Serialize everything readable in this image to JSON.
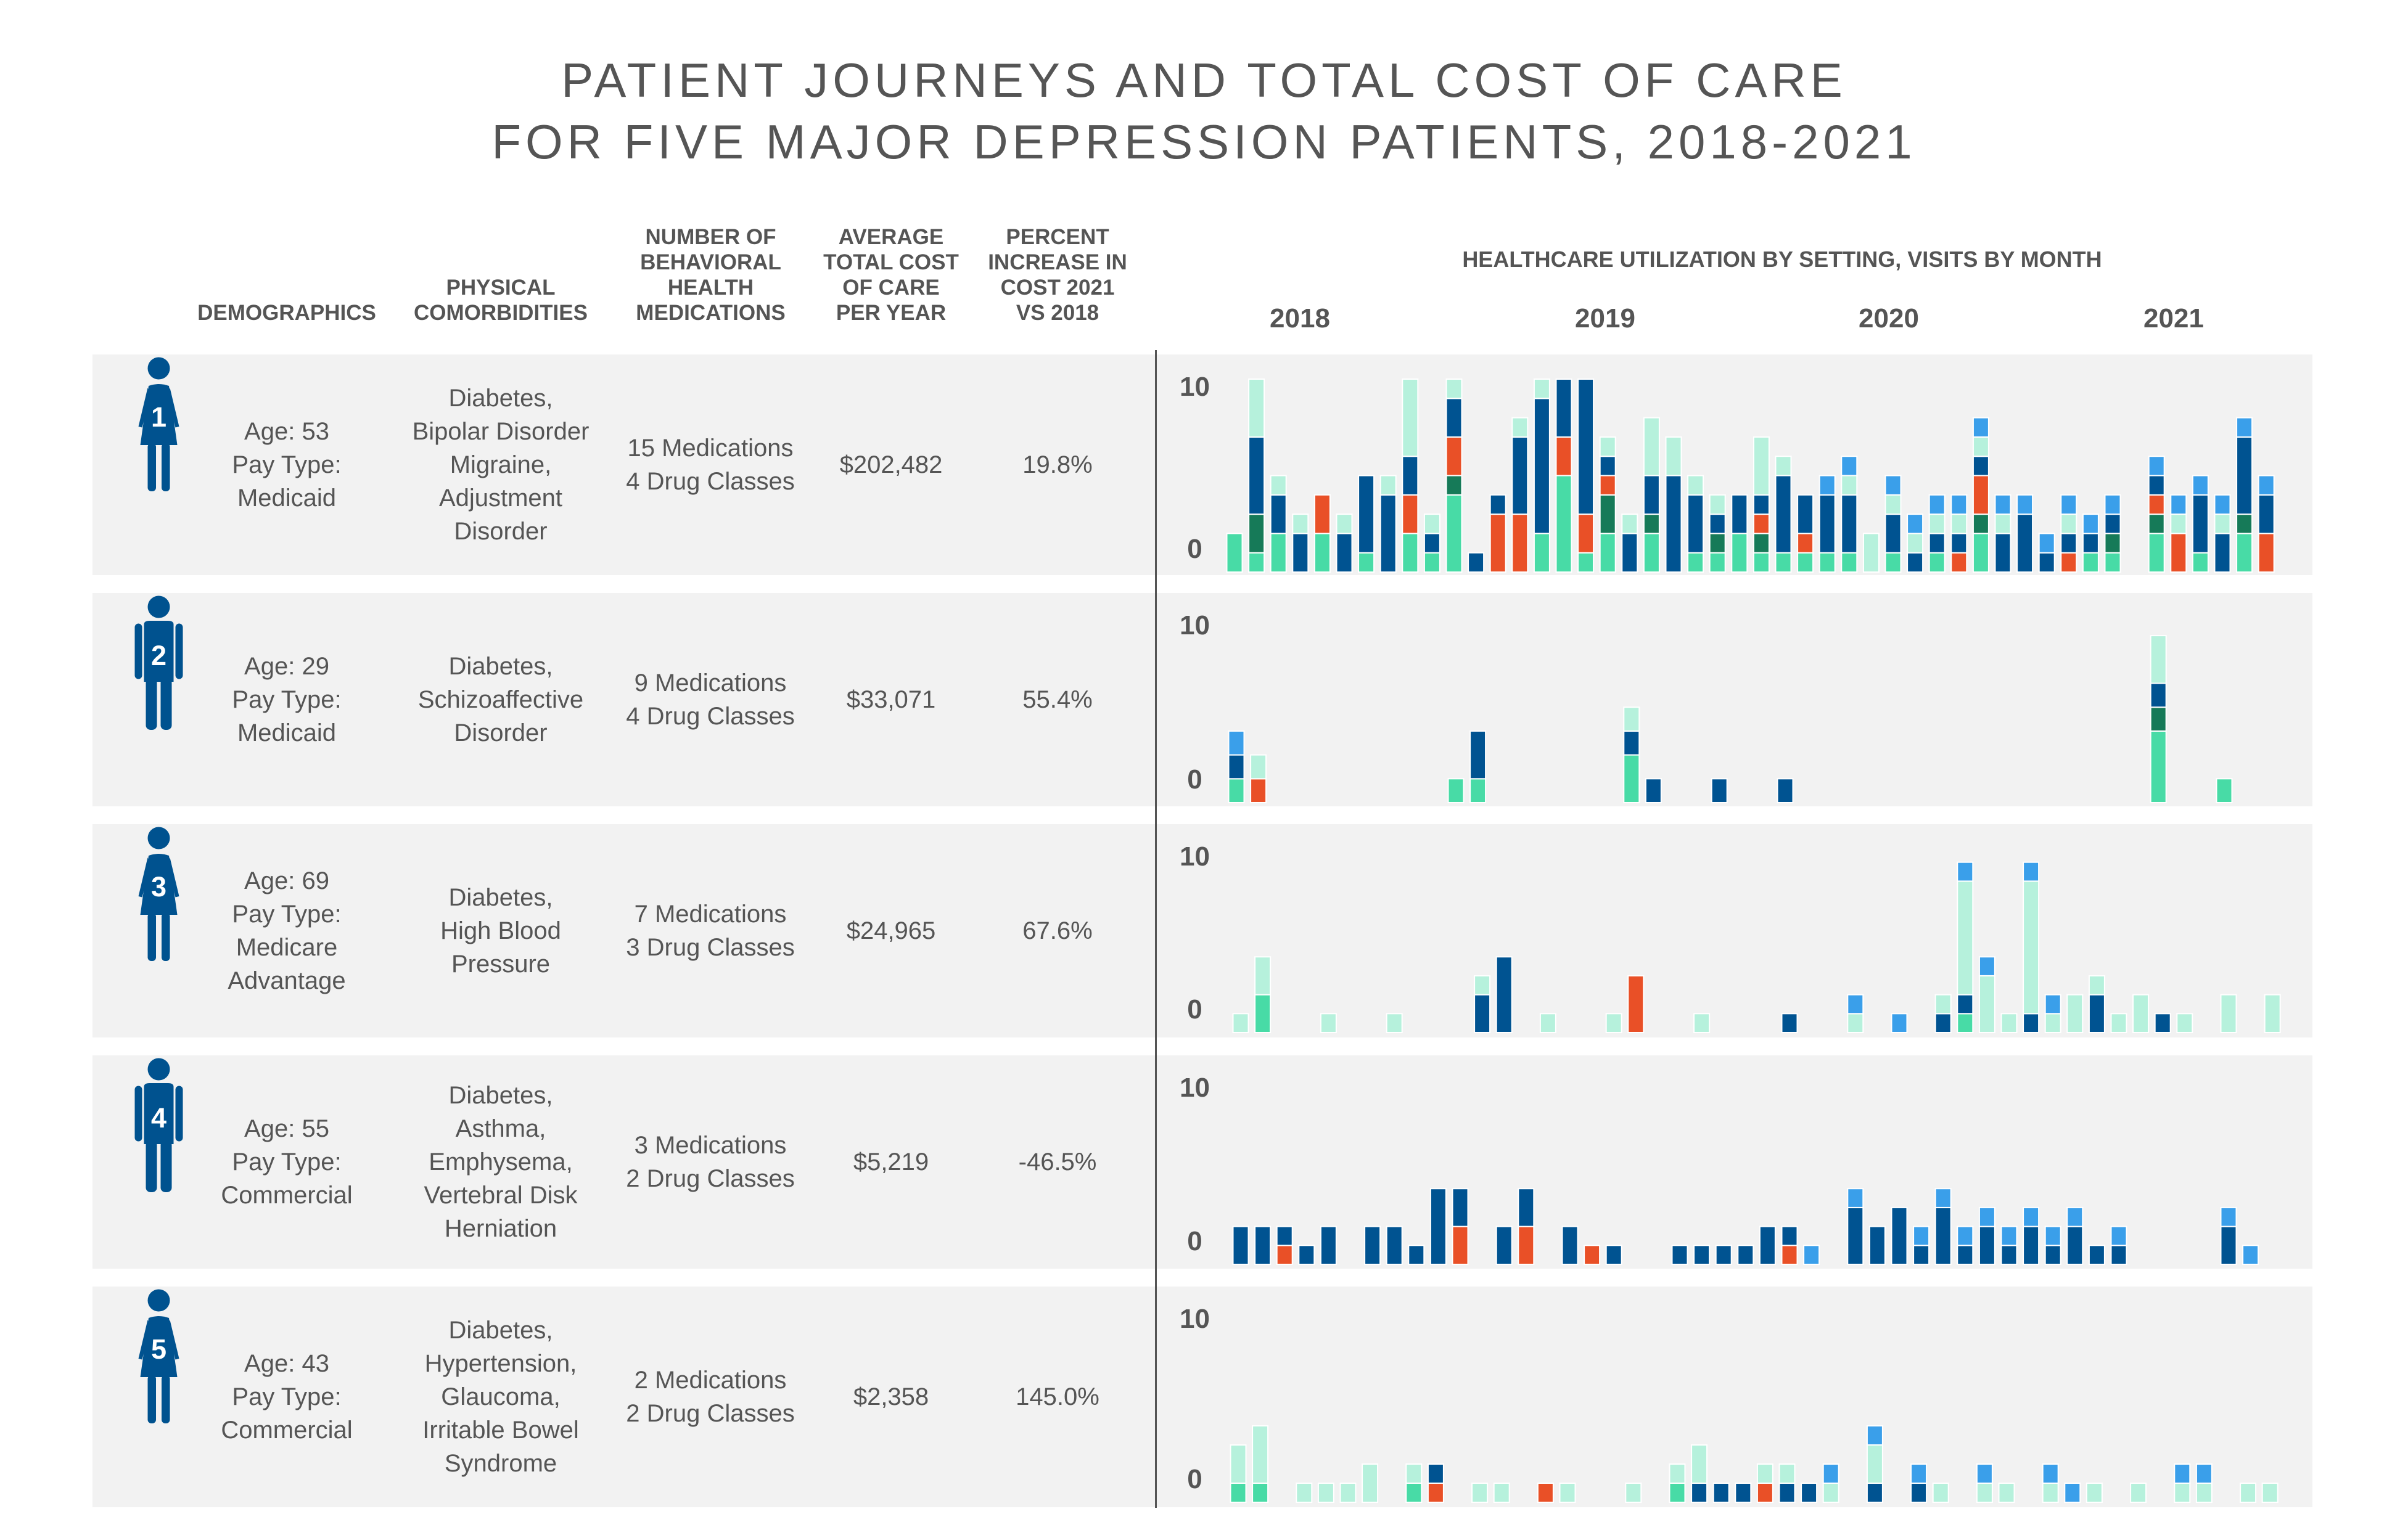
{
  "title": {
    "line1": "PATIENT JOURNEYS AND TOTAL COST OF CARE",
    "line2": "FOR FIVE MAJOR DEPRESSION PATIENTS, 2018-2021"
  },
  "columns": {
    "demographics": [
      "DEMOGRAPHICS"
    ],
    "comorbidities": [
      "PHYSICAL",
      "COMORBIDITIES"
    ],
    "medications": [
      "NUMBER OF",
      "BEHAVIORAL",
      "HEALTH",
      "MEDICATIONS"
    ],
    "cost": [
      "AVERAGE",
      "TOTAL COST",
      "OF CARE",
      "PER YEAR"
    ],
    "percent": [
      "PERCENT",
      "INCREASE IN",
      "COST 2021",
      "VS 2018"
    ],
    "utilization": "HEALTHCARE UTILIZATION BY SETTING, VISITS BY MONTH"
  },
  "years": [
    "2018",
    "2019",
    "2020",
    "2021"
  ],
  "y_axis_labels": {
    "top": "10",
    "bottom": "0"
  },
  "patients": [
    {
      "number": "1",
      "icon": "female-person-icon",
      "age": "Age: 53",
      "pay_type_label": "Pay Type:",
      "pay_type": [
        "Medicaid"
      ],
      "comorbidities": [
        "Diabetes,",
        "Bipolar Disorder",
        "Migraine,",
        "Adjustment",
        "Disorder"
      ],
      "medications": [
        "15 Medications",
        "4 Drug Classes"
      ],
      "avg_cost": "$202,482",
      "pct_increase": "19.8%"
    },
    {
      "number": "2",
      "icon": "male-person-icon",
      "age": "Age: 29",
      "pay_type_label": "Pay Type:",
      "pay_type": [
        "Medicaid"
      ],
      "comorbidities": [
        "Diabetes,",
        "Schizoaffective",
        "Disorder"
      ],
      "medications": [
        "9 Medications",
        "4 Drug Classes"
      ],
      "avg_cost": "$33,071",
      "pct_increase": "55.4%"
    },
    {
      "number": "3",
      "icon": "female-person-icon",
      "age": "Age: 69",
      "pay_type_label": "Pay Type:",
      "pay_type": [
        "Medicare",
        "Advantage"
      ],
      "comorbidities": [
        "Diabetes,",
        "High Blood",
        "Pressure"
      ],
      "medications": [
        "7 Medications",
        "3 Drug Classes"
      ],
      "avg_cost": "$24,965",
      "pct_increase": "67.6%"
    },
    {
      "number": "4",
      "icon": "male-person-icon",
      "age": "Age: 55",
      "pay_type_label": "Pay Type:",
      "pay_type": [
        "Commercial"
      ],
      "comorbidities": [
        "Diabetes,",
        "Asthma,",
        "Emphysema,",
        "Vertebral Disk",
        "Herniation"
      ],
      "medications": [
        "3 Medications",
        "2 Drug Classes"
      ],
      "avg_cost": "$5,219",
      "pct_increase": "-46.5%"
    },
    {
      "number": "5",
      "icon": "female-person-icon",
      "age": "Age: 43",
      "pay_type_label": "Pay Type:",
      "pay_type": [
        "Commercial"
      ],
      "comorbidities": [
        "Diabetes,",
        "Hypertension,",
        "Glaucoma,",
        "Irritable Bowel",
        "Syndrome"
      ],
      "medications": [
        "2 Medications",
        "2 Drug Classes"
      ],
      "avg_cost": "$2,358",
      "pct_increase": "145.0%"
    }
  ],
  "colors": {
    "icon": "#00528f",
    "panel_bg": "#f2f2f2",
    "text": "#555555"
  },
  "chart_data": {
    "type": "bar",
    "stacked": true,
    "title": "HEALTHCARE UTILIZATION BY SETTING, VISITS BY MONTH",
    "x_unit": "month",
    "months_per_patient": 48,
    "year_labels": [
      "2018",
      "2019",
      "2020",
      "2021"
    ],
    "y_tick_labels": [
      "0",
      "10"
    ],
    "segment_colors": {
      "g": "#48dba6",
      "d": "#167a58",
      "b": "#005391",
      "o": "#e95027",
      "m": "#b6f1dc",
      "s": "#3a9fea"
    },
    "patients": [
      {
        "patient": "1",
        "months": [
          "g2",
          "g1 d2 b4 m3",
          "g2 b2 m1",
          "b2 m1",
          "g2 o2",
          "b2 m1",
          "g1 b4",
          "b4 m1",
          "g2 o2 b2 m4",
          "g1 b1 m1",
          "g4 d1 o2 b2 m1",
          "b1",
          "o3 b1",
          "o3 b4 m1",
          "g2 b7 m1",
          "g5 o2 b3",
          "g1 o2 b7",
          "g2 d2 o1 b1 m1",
          "b2 m1",
          "g2 d1 b2 m3",
          "b5 m2",
          "g1 b3 m1",
          "g1 d1 b1 m1",
          "g2 b2",
          "g1 d1 o1 b1 m3",
          "g1 b4 m1",
          "g1 o1 b2",
          "g1 b3 s1",
          "g1 b3 m1 s1",
          "m2",
          "g1 b2 m1 s1",
          "b1 m1 s1",
          "g1 b1 m1 s1",
          "o1 b1 m1 s1",
          "g2 d1 o2 b1 m1 s1",
          "b2 m1 s1",
          "b3 s1",
          "b1 s1",
          "o1 b1 m1 s1",
          "g1 b1 s1",
          "g1 d1 b1 s1",
          "",
          "g2 d1 o1 b1 s1",
          "o2 m1 s1",
          "g1 b3 s1",
          "b2 m1 s1",
          "g2 d1 b4 s1",
          "o2 b2 s1"
        ]
      },
      {
        "patient": "2",
        "months": [
          "g1 b1 s1",
          "o1 m1",
          "",
          "",
          "",
          "",
          "",
          "",
          "",
          "",
          "g1",
          "g1 b2",
          "",
          "",
          "",
          "",
          "",
          "",
          "g2 b1 m1",
          "b1",
          "",
          "",
          "b1",
          "",
          "",
          "b1",
          "",
          "",
          "",
          "",
          "",
          "",
          "",
          "",
          "",
          "",
          "",
          "",
          "",
          "",
          "",
          "",
          "g3 d1 b1 m2",
          "",
          "",
          "g1",
          "",
          ""
        ]
      },
      {
        "patient": "3",
        "months": [
          "m1",
          "g2 m2",
          "",
          "",
          "m1",
          "",
          "",
          "m1",
          "",
          "",
          "",
          "b2 m1",
          "b4",
          "",
          "m1",
          "",
          "",
          "m1",
          "o3",
          "",
          "",
          "m1",
          "",
          "",
          "",
          "b1",
          "",
          "",
          "m1 s1",
          "",
          "s1",
          "",
          "b1 m1",
          "g1 b1 m6 s1",
          "m3 s1",
          "m1",
          "b1 m7 s1",
          "m1 s1",
          "m2",
          "b2 m1",
          "m1",
          "m2",
          "b1",
          "m1",
          "",
          "m2",
          "",
          "m2"
        ]
      },
      {
        "patient": "4",
        "months": [
          "b2",
          "b2",
          "o1 b1",
          "b1",
          "b2",
          "",
          "b2",
          "b2",
          "b1",
          "b4",
          "o2 b2",
          "",
          "b2",
          "o2 b2",
          "",
          "b2",
          "o1",
          "b1",
          "",
          "",
          "b1",
          "b1",
          "b1",
          "b1",
          "b2",
          "o1 b1",
          "s1",
          "",
          "b3 s1",
          "b2",
          "b3",
          "b1 s1",
          "b3 s1",
          "b1 s1",
          "b2 s1",
          "b1 s1",
          "b2 s1",
          "b1 s1",
          "b2 s1",
          "b1",
          "b1 s1",
          "",
          "",
          "",
          "",
          "b2 s1",
          "s1",
          ""
        ]
      },
      {
        "patient": "5",
        "months": [
          "g1 m2",
          "g1 m3",
          "",
          "m1",
          "m1",
          "m1",
          "m2",
          "",
          "g1 m1",
          "o1 b1",
          "",
          "m1",
          "m1",
          "",
          "o1",
          "m1",
          "",
          "",
          "m1",
          "",
          "g1 m1",
          "b1 m2",
          "b1",
          "b1",
          "o1 m1",
          "b1 m1",
          "b1",
          "m1 s1",
          "",
          "b1 m2 s1",
          "",
          "b1 s1",
          "m1",
          "",
          "m1 s1",
          "m1",
          "",
          "m1 s1",
          "s1",
          "m1",
          "",
          "m1",
          "",
          "m1 s1",
          "m1 s1",
          "",
          "m1",
          "m1"
        ]
      }
    ]
  }
}
